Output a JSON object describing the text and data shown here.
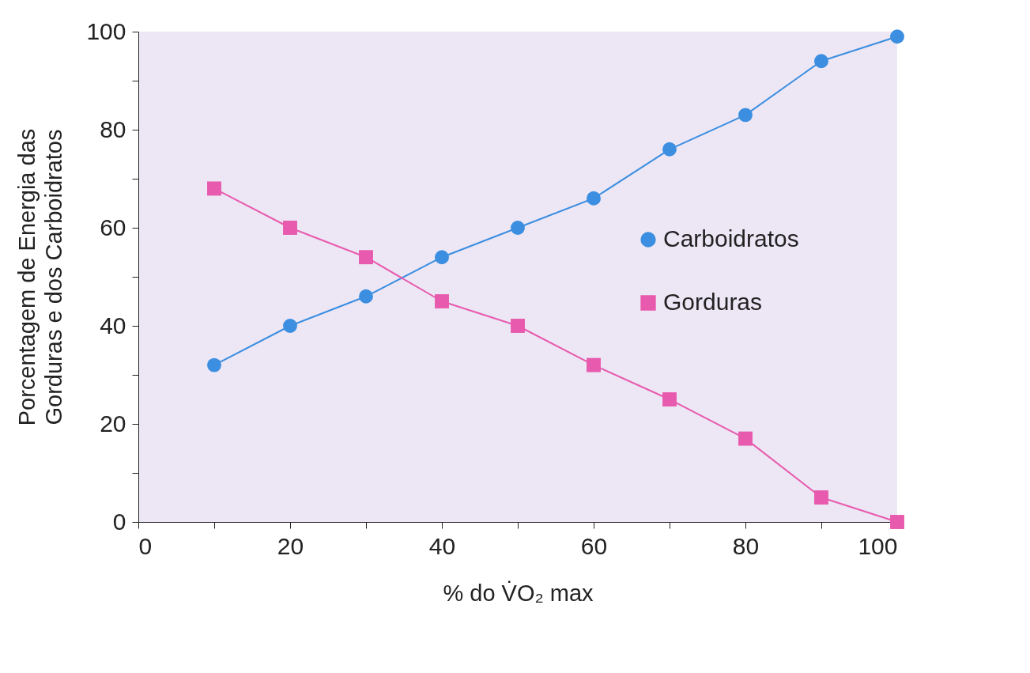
{
  "chart_data": {
    "type": "line",
    "xlabel": "% do V̇O₂ max",
    "ylabel": "Porcentagem de Energia das\nGorduras e dos Carboidratos",
    "x": [
      10,
      20,
      30,
      40,
      50,
      60,
      70,
      80,
      90,
      100
    ],
    "series": [
      {
        "name": "Carboidratos",
        "color": "#3b8ee0",
        "marker": "circle",
        "values": [
          32,
          40,
          46,
          54,
          60,
          66,
          76,
          83,
          94,
          99
        ]
      },
      {
        "name": "Gorduras",
        "color": "#e85aad",
        "marker": "square",
        "values": [
          68,
          60,
          54,
          45,
          40,
          32,
          25,
          17,
          5,
          0
        ]
      }
    ],
    "xlim": [
      0,
      100
    ],
    "ylim": [
      0,
      100
    ],
    "xticks": [
      0,
      {
        "value": 10,
        "label": null
      },
      20,
      {
        "value": 30,
        "label": null
      },
      40,
      {
        "value": 50,
        "label": null
      },
      60,
      {
        "value": 70,
        "label": null
      },
      80,
      {
        "value": 90,
        "label": null
      },
      100
    ],
    "yticks": [
      0,
      {
        "value": 10,
        "label": null
      },
      20,
      {
        "value": 30,
        "label": null
      },
      40,
      {
        "value": 50,
        "label": null
      },
      60,
      {
        "value": 70,
        "label": null
      },
      80,
      {
        "value": 90,
        "label": null
      },
      100
    ],
    "legend": "right",
    "grid": false,
    "line_style": "solid"
  }
}
